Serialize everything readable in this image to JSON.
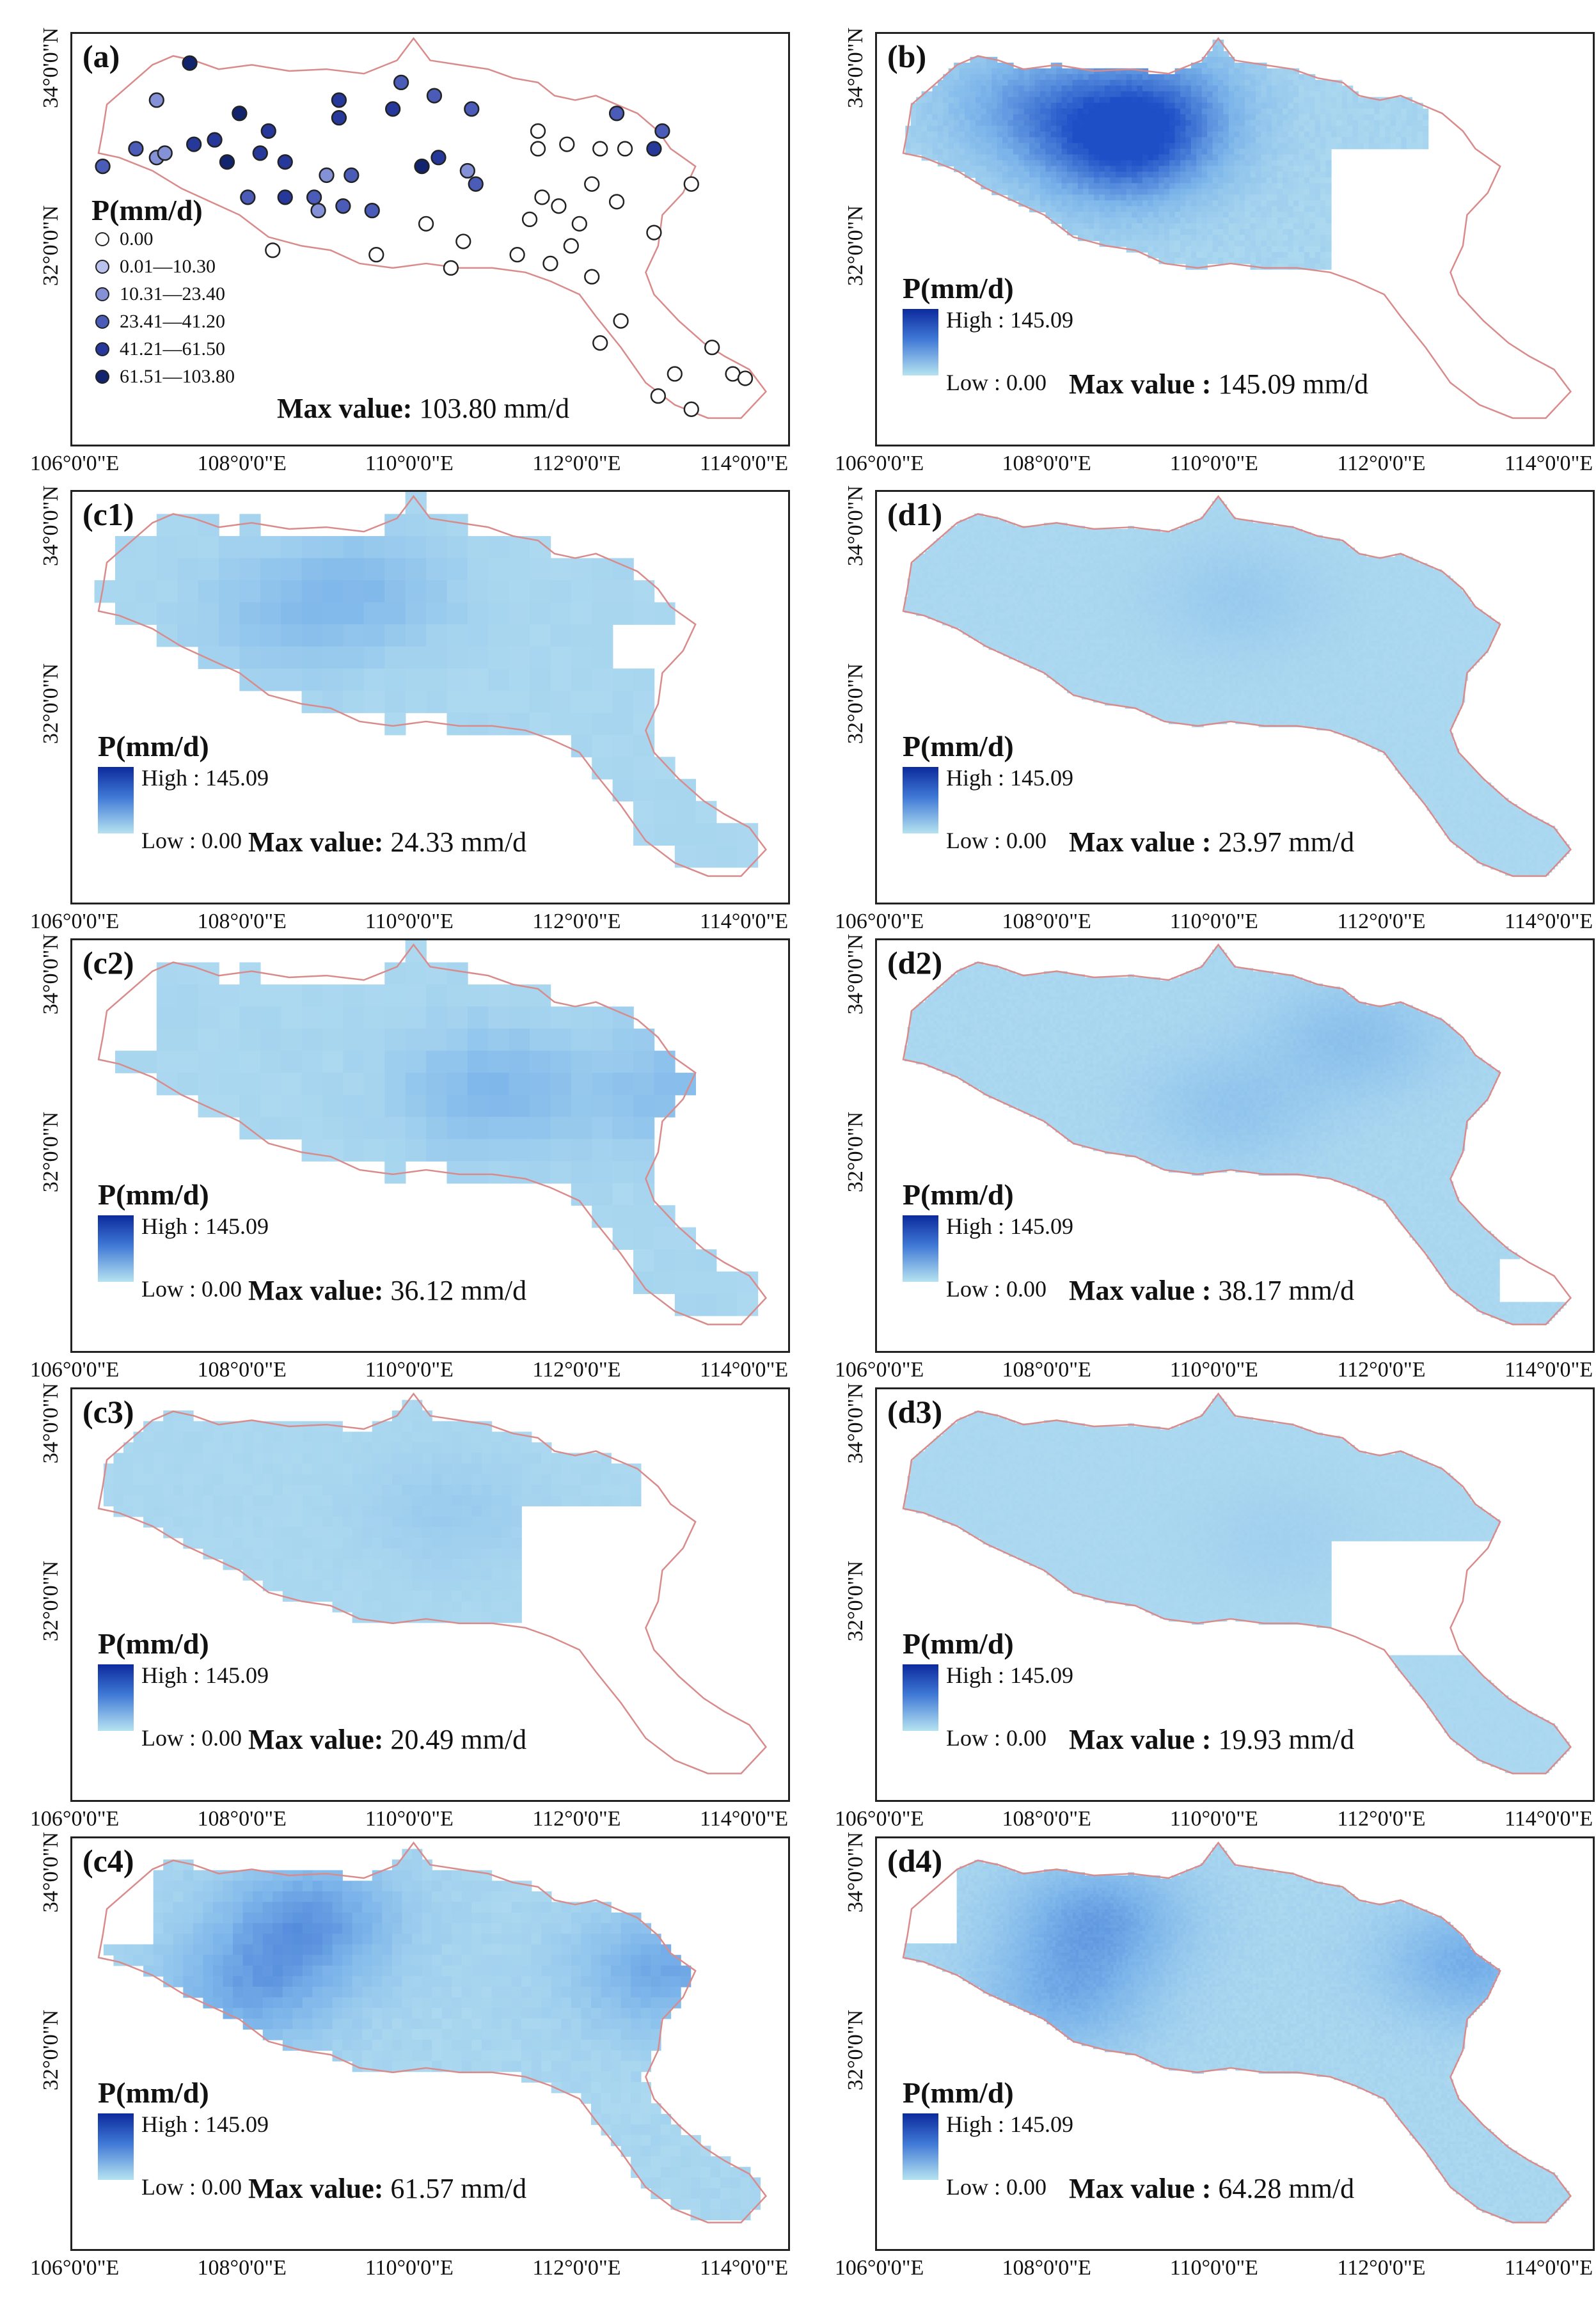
{
  "figure": {
    "legend_title": "P(mm/d)",
    "legend_high": "High : 145.09",
    "legend_low": "Low : 0.00",
    "max_value_label": "Max value:",
    "max_value_label_spaced": "Max value :",
    "x_ticks": [
      "106°0'0\"E",
      "108°0'0\"E",
      "110°0'0\"E",
      "112°0'0\"E",
      "114°0'0\"E"
    ],
    "y_ticks": [
      "34°0'0\"N",
      "32°0'0\"N"
    ],
    "colors": {
      "boundary": "#d98b8b",
      "high": "#0c2a9c",
      "low": "#b6e3f0",
      "mid": "#3f78d6"
    }
  },
  "panels": [
    {
      "id": "a",
      "label": "(a)",
      "max_value": "103.80 mm/d",
      "spaced": false
    },
    {
      "id": "b",
      "label": "(b)",
      "max_value": "145.09 mm/d",
      "spaced": true
    },
    {
      "id": "c1",
      "label": "(c1)",
      "max_value": "24.33 mm/d",
      "spaced": false
    },
    {
      "id": "d1",
      "label": "(d1)",
      "max_value": "23.97 mm/d",
      "spaced": true
    },
    {
      "id": "c2",
      "label": "(c2)",
      "max_value": "36.12 mm/d",
      "spaced": false
    },
    {
      "id": "d2",
      "label": "(d2)",
      "max_value": "38.17 mm/d",
      "spaced": true
    },
    {
      "id": "c3",
      "label": "(c3)",
      "max_value": "20.49 mm/d",
      "spaced": false
    },
    {
      "id": "d3",
      "label": "(d3)",
      "max_value": "19.93 mm/d",
      "spaced": true
    },
    {
      "id": "c4",
      "label": "(c4)",
      "max_value": "61.57 mm/d",
      "spaced": false
    },
    {
      "id": "d4",
      "label": "(d4)",
      "max_value": "64.28 mm/d",
      "spaced": true
    }
  ],
  "site_legend": {
    "classes": [
      {
        "label": "0.00",
        "color": "#ffffff"
      },
      {
        "label": "0.01—10.30",
        "color": "#b9c2ee"
      },
      {
        "label": "10.31—23.40",
        "color": "#8591d6"
      },
      {
        "label": "23.41—41.20",
        "color": "#4b5cb8"
      },
      {
        "label": "41.21—61.50",
        "color": "#26399b"
      },
      {
        "label": "61.51—103.80",
        "color": "#13246f"
      }
    ]
  },
  "sites": [
    {
      "lon": 107.35,
      "lat": 34.07,
      "cls": 5
    },
    {
      "lon": 106.95,
      "lat": 33.65,
      "cls": 2
    },
    {
      "lon": 107.95,
      "lat": 33.5,
      "cls": 5
    },
    {
      "lon": 108.3,
      "lat": 33.3,
      "cls": 4
    },
    {
      "lon": 109.15,
      "lat": 33.65,
      "cls": 4
    },
    {
      "lon": 109.15,
      "lat": 33.45,
      "cls": 4
    },
    {
      "lon": 109.9,
      "lat": 33.85,
      "cls": 3
    },
    {
      "lon": 109.8,
      "lat": 33.55,
      "cls": 4
    },
    {
      "lon": 110.3,
      "lat": 33.7,
      "cls": 3
    },
    {
      "lon": 110.75,
      "lat": 33.55,
      "cls": 3
    },
    {
      "lon": 106.3,
      "lat": 32.9,
      "cls": 3
    },
    {
      "lon": 106.7,
      "lat": 33.1,
      "cls": 3
    },
    {
      "lon": 106.95,
      "lat": 33.0,
      "cls": 2
    },
    {
      "lon": 107.05,
      "lat": 33.05,
      "cls": 2
    },
    {
      "lon": 107.4,
      "lat": 33.15,
      "cls": 4
    },
    {
      "lon": 107.65,
      "lat": 33.2,
      "cls": 4
    },
    {
      "lon": 107.8,
      "lat": 32.95,
      "cls": 5
    },
    {
      "lon": 108.2,
      "lat": 33.05,
      "cls": 4
    },
    {
      "lon": 108.5,
      "lat": 32.95,
      "cls": 4
    },
    {
      "lon": 108.05,
      "lat": 32.55,
      "cls": 3
    },
    {
      "lon": 108.5,
      "lat": 32.55,
      "cls": 4
    },
    {
      "lon": 108.9,
      "lat": 32.4,
      "cls": 2
    },
    {
      "lon": 109.0,
      "lat": 32.8,
      "cls": 2
    },
    {
      "lon": 109.3,
      "lat": 32.8,
      "cls": 3
    },
    {
      "lon": 108.85,
      "lat": 32.55,
      "cls": 3
    },
    {
      "lon": 109.2,
      "lat": 32.45,
      "cls": 3
    },
    {
      "lon": 109.55,
      "lat": 32.4,
      "cls": 3
    },
    {
      "lon": 110.15,
      "lat": 32.9,
      "cls": 5
    },
    {
      "lon": 110.35,
      "lat": 33.0,
      "cls": 4
    },
    {
      "lon": 110.7,
      "lat": 32.85,
      "cls": 2
    },
    {
      "lon": 110.8,
      "lat": 32.7,
      "cls": 3
    },
    {
      "lon": 108.35,
      "lat": 31.95,
      "cls": 0
    },
    {
      "lon": 109.6,
      "lat": 31.9,
      "cls": 0
    },
    {
      "lon": 110.2,
      "lat": 32.25,
      "cls": 0
    },
    {
      "lon": 110.65,
      "lat": 32.05,
      "cls": 0
    },
    {
      "lon": 110.5,
      "lat": 31.75,
      "cls": 0
    },
    {
      "lon": 111.3,
      "lat": 31.9,
      "cls": 0
    },
    {
      "lon": 111.55,
      "lat": 33.3,
      "cls": 0
    },
    {
      "lon": 111.55,
      "lat": 33.1,
      "cls": 0
    },
    {
      "lon": 111.9,
      "lat": 33.15,
      "cls": 0
    },
    {
      "lon": 112.5,
      "lat": 33.5,
      "cls": 3
    },
    {
      "lon": 112.3,
      "lat": 33.1,
      "cls": 0
    },
    {
      "lon": 112.6,
      "lat": 33.1,
      "cls": 0
    },
    {
      "lon": 112.95,
      "lat": 33.1,
      "cls": 4
    },
    {
      "lon": 113.05,
      "lat": 33.3,
      "cls": 3
    },
    {
      "lon": 111.6,
      "lat": 32.55,
      "cls": 0
    },
    {
      "lon": 111.8,
      "lat": 32.45,
      "cls": 0
    },
    {
      "lon": 111.45,
      "lat": 32.3,
      "cls": 0
    },
    {
      "lon": 112.2,
      "lat": 32.7,
      "cls": 0
    },
    {
      "lon": 112.5,
      "lat": 32.5,
      "cls": 0
    },
    {
      "lon": 112.05,
      "lat": 32.25,
      "cls": 0
    },
    {
      "lon": 111.95,
      "lat": 32.0,
      "cls": 0
    },
    {
      "lon": 111.7,
      "lat": 31.8,
      "cls": 0
    },
    {
      "lon": 112.2,
      "lat": 31.65,
      "cls": 0
    },
    {
      "lon": 112.95,
      "lat": 32.15,
      "cls": 0
    },
    {
      "lon": 113.4,
      "lat": 32.7,
      "cls": 0
    },
    {
      "lon": 112.55,
      "lat": 31.15,
      "cls": 0
    },
    {
      "lon": 112.3,
      "lat": 30.9,
      "cls": 0
    },
    {
      "lon": 113.65,
      "lat": 30.85,
      "cls": 0
    },
    {
      "lon": 113.2,
      "lat": 30.55,
      "cls": 0
    },
    {
      "lon": 113.0,
      "lat": 30.3,
      "cls": 0
    },
    {
      "lon": 113.4,
      "lat": 30.15,
      "cls": 0
    },
    {
      "lon": 113.9,
      "lat": 30.55,
      "cls": 0
    },
    {
      "lon": 114.05,
      "lat": 30.5,
      "cls": 0
    }
  ]
}
